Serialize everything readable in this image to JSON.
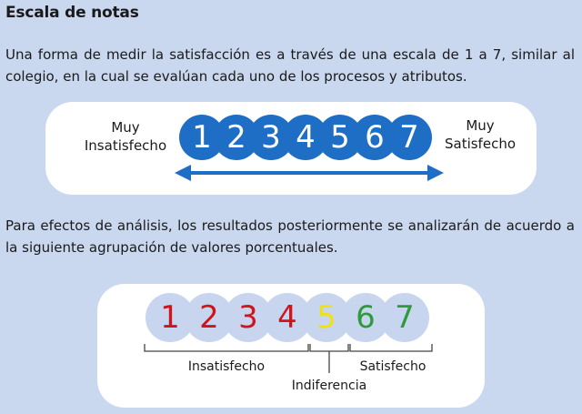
{
  "title": "Escala de notas",
  "paragraph1": "Una forma de medir la satisfacción es a través de una escala de 1 a 7, similar al colegio, en la cual se evalúan cada uno de los procesos y atributos.",
  "scale": {
    "left_label_line1": "Muy",
    "left_label_line2": "Insatisfecho",
    "right_label_line1": "Muy",
    "right_label_line2": "Satisfecho",
    "numbers": [
      "1",
      "2",
      "3",
      "4",
      "5",
      "6",
      "7"
    ],
    "circle_color": "#1e6ec5"
  },
  "paragraph2": "Para efectos de análisis, los resultados posteriormente se analizarán de acuerdo a la siguiente agrupación de valores porcentuales.",
  "grouping": {
    "numbers": [
      {
        "value": "1",
        "color": "#d0141c"
      },
      {
        "value": "2",
        "color": "#d0141c"
      },
      {
        "value": "3",
        "color": "#d0141c"
      },
      {
        "value": "4",
        "color": "#d0141c"
      },
      {
        "value": "5",
        "color": "#f2e012"
      },
      {
        "value": "6",
        "color": "#2f9a3a"
      },
      {
        "value": "7",
        "color": "#2f9a3a"
      }
    ],
    "label_insatisfecho": "Insatisfecho",
    "label_indiferencia": "Indiferencia",
    "label_satisfecho": "Satisfecho"
  }
}
